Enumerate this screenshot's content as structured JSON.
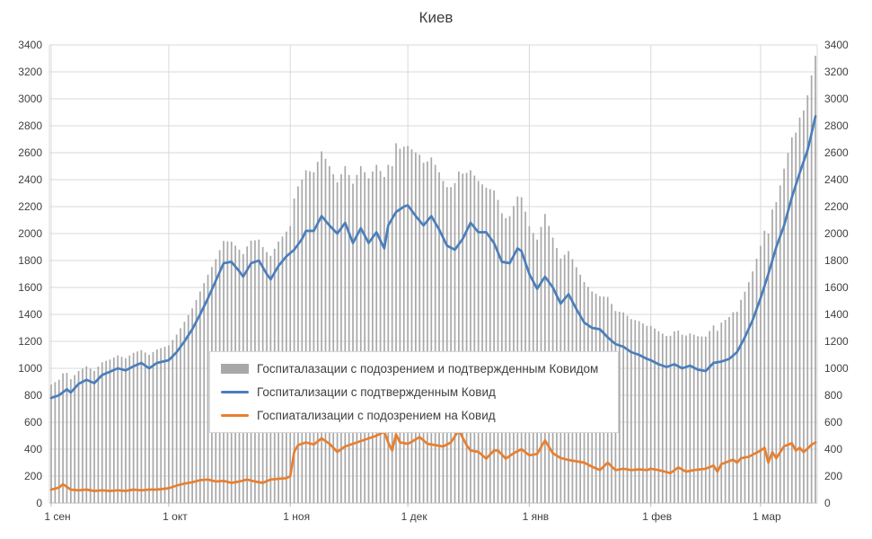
{
  "chart_data": {
    "type": "combo-bar-line",
    "title": "Киев",
    "grid": true,
    "legend_position": "inside-center-left",
    "x_axis": {
      "unit": "days-from-sep-1",
      "range_days": [
        0,
        195
      ],
      "tick_days": [
        0,
        30,
        61,
        91,
        122,
        153,
        181
      ],
      "tick_labels": [
        "1 сен",
        "1 окт",
        "1 ноя",
        "1 дек",
        "1 янв",
        "1 фев",
        "1 мар"
      ]
    },
    "y_axis": {
      "min": 0,
      "max": 3400,
      "step": 200,
      "sides": [
        "left",
        "right"
      ]
    },
    "colors": {
      "bars": "#a8a8a8",
      "confirmed": "#4a7ebc",
      "suspected": "#e87f2f",
      "grid": "#d9d9d9",
      "axis": "#bfbfbf",
      "text": "#404040"
    },
    "series": [
      {
        "name": "Госпиталазации с подозрением и подтвержденным Ковидом",
        "type": "bar",
        "color": "#a8a8a8",
        "values": "sum of confirmed and suspected series per day"
      },
      {
        "name": "Госпитализации с подтвержденным Ковид",
        "type": "line",
        "color": "#4a7ebc",
        "points": [
          [
            0,
            780
          ],
          [
            2,
            800
          ],
          [
            4,
            845
          ],
          [
            5,
            820
          ],
          [
            7,
            885
          ],
          [
            9,
            915
          ],
          [
            11,
            890
          ],
          [
            13,
            950
          ],
          [
            15,
            975
          ],
          [
            17,
            1000
          ],
          [
            19,
            985
          ],
          [
            21,
            1015
          ],
          [
            23,
            1040
          ],
          [
            25,
            1000
          ],
          [
            27,
            1040
          ],
          [
            30,
            1060
          ],
          [
            32,
            1120
          ],
          [
            34,
            1200
          ],
          [
            36,
            1290
          ],
          [
            38,
            1400
          ],
          [
            40,
            1520
          ],
          [
            42,
            1650
          ],
          [
            44,
            1780
          ],
          [
            46,
            1790
          ],
          [
            48,
            1720
          ],
          [
            49,
            1680
          ],
          [
            51,
            1780
          ],
          [
            53,
            1800
          ],
          [
            55,
            1700
          ],
          [
            56,
            1660
          ],
          [
            58,
            1760
          ],
          [
            60,
            1830
          ],
          [
            62,
            1880
          ],
          [
            64,
            1960
          ],
          [
            65,
            2020
          ],
          [
            67,
            2020
          ],
          [
            69,
            2130
          ],
          [
            71,
            2060
          ],
          [
            73,
            2000
          ],
          [
            75,
            2080
          ],
          [
            77,
            1930
          ],
          [
            79,
            2040
          ],
          [
            81,
            1930
          ],
          [
            83,
            2010
          ],
          [
            85,
            1890
          ],
          [
            86,
            2060
          ],
          [
            88,
            2160
          ],
          [
            90,
            2200
          ],
          [
            91,
            2210
          ],
          [
            93,
            2130
          ],
          [
            95,
            2060
          ],
          [
            97,
            2130
          ],
          [
            99,
            2030
          ],
          [
            101,
            1910
          ],
          [
            103,
            1880
          ],
          [
            105,
            1960
          ],
          [
            107,
            2080
          ],
          [
            109,
            2010
          ],
          [
            111,
            2010
          ],
          [
            113,
            1930
          ],
          [
            115,
            1790
          ],
          [
            117,
            1780
          ],
          [
            119,
            1890
          ],
          [
            120,
            1870
          ],
          [
            122,
            1700
          ],
          [
            124,
            1590
          ],
          [
            126,
            1680
          ],
          [
            128,
            1600
          ],
          [
            130,
            1480
          ],
          [
            132,
            1550
          ],
          [
            134,
            1440
          ],
          [
            136,
            1340
          ],
          [
            138,
            1300
          ],
          [
            140,
            1290
          ],
          [
            142,
            1230
          ],
          [
            144,
            1180
          ],
          [
            146,
            1160
          ],
          [
            148,
            1120
          ],
          [
            150,
            1100
          ],
          [
            152,
            1070
          ],
          [
            153,
            1060
          ],
          [
            155,
            1030
          ],
          [
            157,
            1010
          ],
          [
            159,
            1030
          ],
          [
            161,
            1000
          ],
          [
            163,
            1020
          ],
          [
            165,
            990
          ],
          [
            167,
            980
          ],
          [
            169,
            1040
          ],
          [
            171,
            1050
          ],
          [
            173,
            1070
          ],
          [
            175,
            1120
          ],
          [
            177,
            1230
          ],
          [
            179,
            1360
          ],
          [
            181,
            1520
          ],
          [
            183,
            1700
          ],
          [
            185,
            1900
          ],
          [
            187,
            2060
          ],
          [
            189,
            2270
          ],
          [
            191,
            2450
          ],
          [
            193,
            2620
          ],
          [
            194,
            2740
          ],
          [
            195,
            2870
          ]
        ]
      },
      {
        "name": "Госпиатализации с подозрением на Ковид",
        "type": "line",
        "color": "#e87f2f",
        "points": [
          [
            0,
            100
          ],
          [
            2,
            115
          ],
          [
            3,
            140
          ],
          [
            5,
            100
          ],
          [
            7,
            95
          ],
          [
            9,
            100
          ],
          [
            11,
            90
          ],
          [
            13,
            95
          ],
          [
            15,
            90
          ],
          [
            17,
            95
          ],
          [
            19,
            90
          ],
          [
            21,
            100
          ],
          [
            23,
            95
          ],
          [
            25,
            100
          ],
          [
            27,
            100
          ],
          [
            30,
            110
          ],
          [
            32,
            130
          ],
          [
            34,
            145
          ],
          [
            36,
            155
          ],
          [
            38,
            170
          ],
          [
            40,
            175
          ],
          [
            42,
            160
          ],
          [
            44,
            165
          ],
          [
            46,
            150
          ],
          [
            48,
            160
          ],
          [
            50,
            175
          ],
          [
            52,
            160
          ],
          [
            54,
            150
          ],
          [
            56,
            175
          ],
          [
            58,
            180
          ],
          [
            60,
            185
          ],
          [
            61,
            200
          ],
          [
            62,
            380
          ],
          [
            63,
            430
          ],
          [
            65,
            450
          ],
          [
            67,
            435
          ],
          [
            69,
            480
          ],
          [
            71,
            440
          ],
          [
            73,
            380
          ],
          [
            75,
            420
          ],
          [
            77,
            440
          ],
          [
            79,
            460
          ],
          [
            81,
            480
          ],
          [
            83,
            500
          ],
          [
            85,
            530
          ],
          [
            86,
            450
          ],
          [
            87,
            390
          ],
          [
            88,
            510
          ],
          [
            89,
            450
          ],
          [
            91,
            440
          ],
          [
            92,
            455
          ],
          [
            94,
            490
          ],
          [
            96,
            440
          ],
          [
            98,
            430
          ],
          [
            100,
            420
          ],
          [
            102,
            450
          ],
          [
            104,
            540
          ],
          [
            106,
            430
          ],
          [
            107,
            390
          ],
          [
            109,
            380
          ],
          [
            111,
            330
          ],
          [
            113,
            390
          ],
          [
            114,
            390
          ],
          [
            116,
            330
          ],
          [
            118,
            370
          ],
          [
            120,
            400
          ],
          [
            122,
            355
          ],
          [
            124,
            365
          ],
          [
            126,
            465
          ],
          [
            128,
            370
          ],
          [
            130,
            335
          ],
          [
            132,
            320
          ],
          [
            134,
            310
          ],
          [
            136,
            300
          ],
          [
            138,
            270
          ],
          [
            140,
            245
          ],
          [
            142,
            300
          ],
          [
            144,
            245
          ],
          [
            146,
            255
          ],
          [
            148,
            245
          ],
          [
            150,
            250
          ],
          [
            152,
            245
          ],
          [
            153,
            255
          ],
          [
            155,
            245
          ],
          [
            157,
            230
          ],
          [
            158,
            222
          ],
          [
            160,
            265
          ],
          [
            162,
            233
          ],
          [
            164,
            245
          ],
          [
            167,
            255
          ],
          [
            169,
            278
          ],
          [
            170,
            233
          ],
          [
            171,
            289
          ],
          [
            174,
            322
          ],
          [
            175,
            300
          ],
          [
            176,
            333
          ],
          [
            178,
            344
          ],
          [
            181,
            389
          ],
          [
            182,
            411
          ],
          [
            183,
            300
          ],
          [
            184,
            378
          ],
          [
            185,
            333
          ],
          [
            187,
            422
          ],
          [
            189,
            444
          ],
          [
            190,
            389
          ],
          [
            191,
            411
          ],
          [
            192,
            378
          ],
          [
            194,
            433
          ],
          [
            195,
            450
          ]
        ]
      }
    ]
  }
}
